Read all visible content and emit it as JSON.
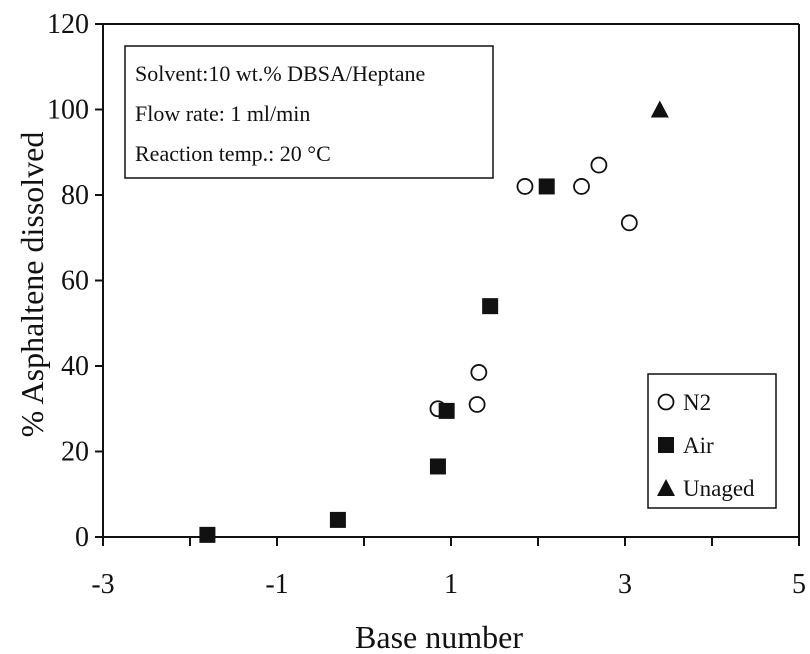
{
  "chart_data": {
    "type": "scatter",
    "xlabel": "Base number",
    "ylabel": "% Asphaltene dissolved",
    "xlim": [
      -3,
      5
    ],
    "ylim": [
      0,
      120
    ],
    "xticks": [
      -3,
      -1,
      1,
      3,
      5
    ],
    "xtick_labels": [
      "-3",
      "-1",
      "1",
      "3",
      "5"
    ],
    "yticks": [
      0,
      20,
      40,
      60,
      80,
      100,
      120
    ],
    "ytick_labels": [
      "0",
      "20",
      "40",
      "60",
      "80",
      "100",
      "120"
    ],
    "grid": false,
    "legend_position": "bottom-right",
    "annotations": [
      "Solvent:10 wt.% DBSA/Heptane",
      "Flow rate: 1 ml/min",
      "Reaction temp.: 20 °C"
    ],
    "series": [
      {
        "name": "N2",
        "marker": "open-circle",
        "points": [
          {
            "x": 0.85,
            "y": 30
          },
          {
            "x": 1.3,
            "y": 31
          },
          {
            "x": 1.32,
            "y": 38.5
          },
          {
            "x": 1.85,
            "y": 82
          },
          {
            "x": 2.5,
            "y": 82
          },
          {
            "x": 2.7,
            "y": 87
          },
          {
            "x": 3.05,
            "y": 73.5
          }
        ]
      },
      {
        "name": "Air",
        "marker": "filled-square",
        "points": [
          {
            "x": -1.8,
            "y": 0.5
          },
          {
            "x": -0.3,
            "y": 4
          },
          {
            "x": 0.85,
            "y": 16.5
          },
          {
            "x": 0.95,
            "y": 29.5
          },
          {
            "x": 1.45,
            "y": 54
          },
          {
            "x": 2.1,
            "y": 82
          }
        ]
      },
      {
        "name": "Unaged",
        "marker": "filled-triangle",
        "points": [
          {
            "x": 3.4,
            "y": 100
          }
        ]
      }
    ]
  }
}
